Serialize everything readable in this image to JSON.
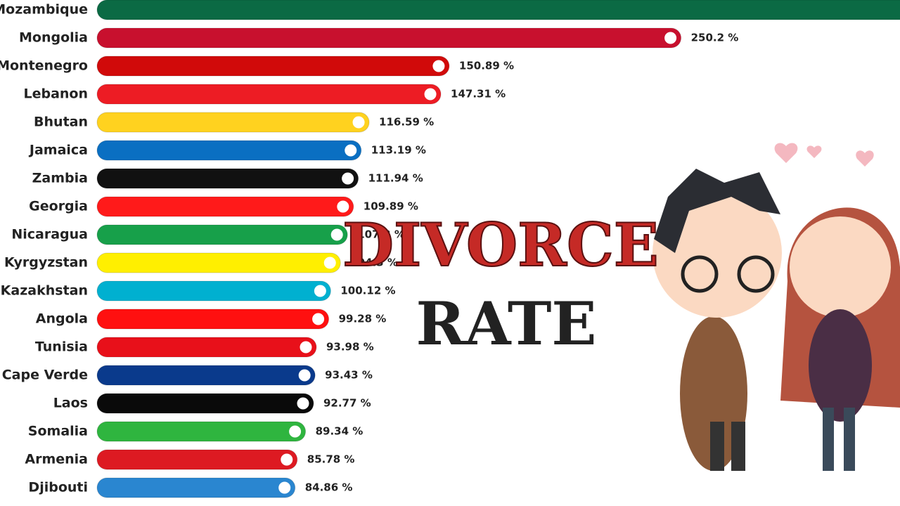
{
  "chart_data": {
    "type": "bar",
    "orientation": "horizontal",
    "title_lines": [
      "DIVORCE",
      "RATE"
    ],
    "categories": [
      "Mozambique",
      "Mongolia",
      "Montenegro",
      "Lebanon",
      "Bhutan",
      "Jamaica",
      "Zambia",
      "Georgia",
      "Nicaragua",
      "Kyrgyzstan",
      "Kazakhstan",
      "Angola",
      "Tunisia",
      "Cape Verde",
      "Laos",
      "Somalia",
      "Armenia",
      "Djibouti"
    ],
    "values": [
      350,
      250.2,
      150.89,
      147.31,
      116.59,
      113.19,
      111.94,
      109.89,
      107.3,
      104.3,
      100.12,
      99.28,
      93.98,
      93.43,
      92.77,
      89.34,
      85.78,
      84.86
    ],
    "value_labels": [
      null,
      "250.2 %",
      "150.89 %",
      "147.31 %",
      "116.59 %",
      "113.19 %",
      "111.94 %",
      "109.89 %",
      "107.3 %",
      "104.3 %",
      "100.12 %",
      "99.28 %",
      "93.98 %",
      "93.43 %",
      "92.77 %",
      "89.34 %",
      "85.78 %",
      "84.86 %"
    ],
    "colors": [
      "#0b6a44",
      "#c8102e",
      "#d10a0a",
      "#ed1c24",
      "#ffd21f",
      "#0a6fc2",
      "#111111",
      "#ff1a1a",
      "#17a04a",
      "#ffef00",
      "#00b0d0",
      "#ff1010",
      "#e8101a",
      "#0a3a8c",
      "#0a0a0a",
      "#2fb53f",
      "#dd1a22",
      "#2a86d0"
    ],
    "xlim": [
      0,
      344
    ]
  }
}
